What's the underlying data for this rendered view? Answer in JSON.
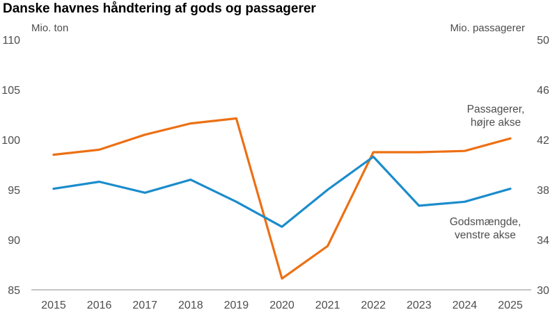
{
  "chart_data": {
    "type": "line",
    "title": "Danske havnes håndtering af gods og passagerer",
    "x": [
      "2015",
      "2016",
      "2017",
      "2018",
      "2019",
      "2020",
      "2021",
      "2022",
      "2023",
      "2024",
      "2025"
    ],
    "left_axis": {
      "label": "Mio. ton",
      "ylim": [
        85,
        110
      ],
      "ticks": [
        85,
        90,
        95,
        100,
        105,
        110
      ]
    },
    "right_axis": {
      "label": "Mio. passagerer",
      "ylim": [
        30,
        50
      ],
      "ticks": [
        30,
        34,
        38,
        42,
        46,
        50
      ]
    },
    "grid": false,
    "series": [
      {
        "name": "Passagerer, højre akse",
        "label_lines": [
          "Passagerer,",
          "højre akse"
        ],
        "axis": "right",
        "color": "#ec7014",
        "values": [
          40.8,
          41.2,
          42.4,
          43.3,
          43.7,
          30.9,
          33.5,
          41.0,
          41.0,
          41.1,
          42.1
        ]
      },
      {
        "name": "Godsmængde, venstre akse",
        "label_lines": [
          "Godsmængde,",
          "venstre akse"
        ],
        "axis": "left",
        "color": "#1b8ccc",
        "values": [
          95.1,
          95.8,
          94.7,
          96.0,
          93.8,
          91.3,
          95.0,
          98.3,
          93.4,
          93.8,
          95.1
        ]
      }
    ]
  }
}
